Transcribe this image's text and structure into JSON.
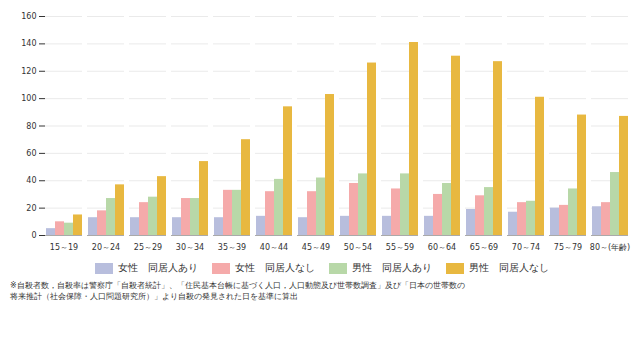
{
  "chart_data": {
    "type": "bar",
    "categories": [
      "15～19",
      "20～24",
      "25～29",
      "30～34",
      "35～39",
      "40～44",
      "45～49",
      "50～54",
      "55～59",
      "60～64",
      "65～69",
      "70～74",
      "75～79",
      "80～(年齢)"
    ],
    "series": [
      {
        "name": "女性　同居人あり",
        "color": "#b8bedd",
        "values": [
          5,
          13,
          13,
          13,
          13,
          14,
          13,
          14,
          14,
          14,
          19,
          17,
          20,
          21
        ]
      },
      {
        "name": "女性　同居人なし",
        "color": "#f5aaaa",
        "values": [
          10,
          18,
          24,
          27,
          33,
          32,
          32,
          38,
          34,
          30,
          29,
          24,
          22,
          24
        ]
      },
      {
        "name": "男性　同居人あり",
        "color": "#b8d8a8",
        "values": [
          9,
          27,
          28,
          27,
          33,
          41,
          42,
          45,
          45,
          38,
          35,
          25,
          34,
          46
        ]
      },
      {
        "name": "男性　同居人なし",
        "color": "#e8b840",
        "values": [
          15,
          37,
          43,
          54,
          70,
          94,
          103,
          126,
          141,
          131,
          127,
          101,
          88,
          87
        ]
      }
    ],
    "ylim": [
      0,
      160
    ],
    "yticks": [
      0,
      20,
      40,
      60,
      80,
      100,
      120,
      140,
      160
    ],
    "grid": true,
    "legend": "bottom",
    "annotations": [
      "※自殺者数，自殺率は警察庁「自殺者統計」、「住民基本台帳に基づく人口，人口動態及び世帯数調査」及び「日本の世帯数の",
      "将来推計（社会保障・人口問題研究所）」より自殺の発見された日を基準に算出"
    ]
  }
}
